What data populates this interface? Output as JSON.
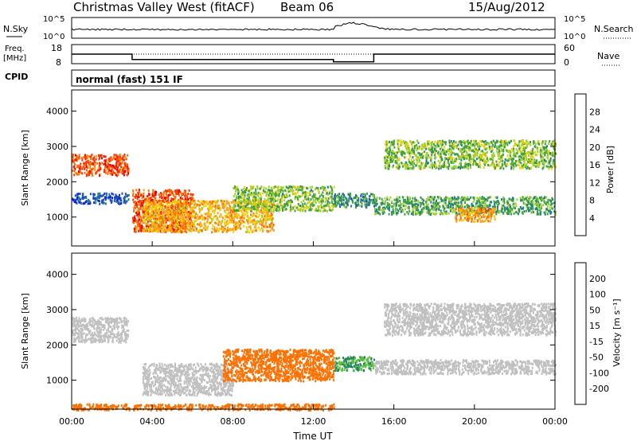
{
  "header": {
    "station": "Christmas Valley West (fitACF)",
    "beam": "Beam 06",
    "date": "15/Aug/2012"
  },
  "noise_panel": {
    "left_label": "N.Sky",
    "right_label": "N.Search",
    "yticks": [
      "10^5",
      "10^0"
    ]
  },
  "freq_panel": {
    "left_label_line1": "Freq.",
    "left_label_line2": "[MHz]",
    "left_ticks": [
      "18",
      "8"
    ],
    "right_label": "Nave",
    "right_ticks": [
      "60",
      "0"
    ]
  },
  "cpid": {
    "label": "CPID",
    "value": "normal (fast) 151 IF"
  },
  "power_colorbar": {
    "label": "Power [dB]",
    "ticks": [
      "28",
      "24",
      "20",
      "16",
      "12",
      "8",
      "4"
    ],
    "colors": [
      "#e80000",
      "#ff3000",
      "#ff7000",
      "#ffa020",
      "#f0d000",
      "#a0d030",
      "#40a040",
      "#208080",
      "#2050c0",
      "#1020e0"
    ]
  },
  "velocity_colorbar": {
    "label": "Velocity [m s⁻¹]",
    "ticks": [
      "200",
      "100",
      "50",
      "15",
      "-15",
      "-50",
      "-100",
      "-200"
    ],
    "colors": [
      "#1020c0",
      "#3060c0",
      "#208060",
      "#60c040",
      "#c0c0c0",
      "#ffa020",
      "#ff7000",
      "#ff3000",
      "#e80000"
    ]
  },
  "chart_data": {
    "type": "heatmap",
    "x_axis": {
      "label": "Time UT",
      "ticks": [
        "00:00",
        "04:00",
        "08:00",
        "12:00",
        "16:00",
        "20:00",
        "00:00"
      ],
      "range_hours": [
        0,
        24
      ]
    },
    "y_axis": {
      "label": "Slant Range [km]",
      "ticks": [
        1000,
        2000,
        3000,
        4000
      ],
      "range_km": [
        180,
        4600
      ]
    },
    "frequency_mhz": [
      {
        "t_start": 0.0,
        "t_end": 3.0,
        "value": 13.0
      },
      {
        "t_start": 3.0,
        "t_end": 13.0,
        "value": 10.2
      },
      {
        "t_start": 13.0,
        "t_end": 15.0,
        "value": 9.0
      },
      {
        "t_start": 15.0,
        "t_end": 24.0,
        "value": 13.0
      }
    ],
    "power_regions": [
      {
        "t": [
          0.0,
          2.8
        ],
        "r": [
          2200,
          2800
        ],
        "dB": 26
      },
      {
        "t": [
          0.0,
          2.8
        ],
        "r": [
          1400,
          1700
        ],
        "dB": 6
      },
      {
        "t": [
          3.0,
          6.0
        ],
        "r": [
          600,
          1800
        ],
        "dB": 26
      },
      {
        "t": [
          3.5,
          10.0
        ],
        "r": [
          600,
          1500
        ],
        "dB": 20
      },
      {
        "t": [
          8.0,
          13.0
        ],
        "r": [
          1200,
          1900
        ],
        "dB": 14
      },
      {
        "t": [
          13.0,
          15.0
        ],
        "r": [
          1300,
          1700
        ],
        "dB": 10
      },
      {
        "t": [
          15.0,
          24.0
        ],
        "r": [
          1100,
          1600
        ],
        "dB": 12
      },
      {
        "t": [
          15.5,
          24.0
        ],
        "r": [
          2400,
          3200
        ],
        "dB": 14
      },
      {
        "t": [
          19.0,
          21.0
        ],
        "r": [
          900,
          1300
        ],
        "dB": 22
      }
    ],
    "velocity_regions": [
      {
        "t": [
          0.0,
          2.8
        ],
        "r": [
          2100,
          2800
        ],
        "v": 0
      },
      {
        "t": [
          3.5,
          8.0
        ],
        "r": [
          600,
          1500
        ],
        "v": 0
      },
      {
        "t": [
          7.5,
          13.0
        ],
        "r": [
          1000,
          1900
        ],
        "v": -60
      },
      {
        "t": [
          0.0,
          13.0
        ],
        "r": [
          180,
          350
        ],
        "v": -60
      },
      {
        "t": [
          13.0,
          15.0
        ],
        "r": [
          1300,
          1700
        ],
        "v": 30
      },
      {
        "t": [
          15.0,
          24.0
        ],
        "r": [
          1200,
          1600
        ],
        "v": 0
      },
      {
        "t": [
          15.5,
          24.0
        ],
        "r": [
          2300,
          3200
        ],
        "v": 0
      }
    ]
  }
}
